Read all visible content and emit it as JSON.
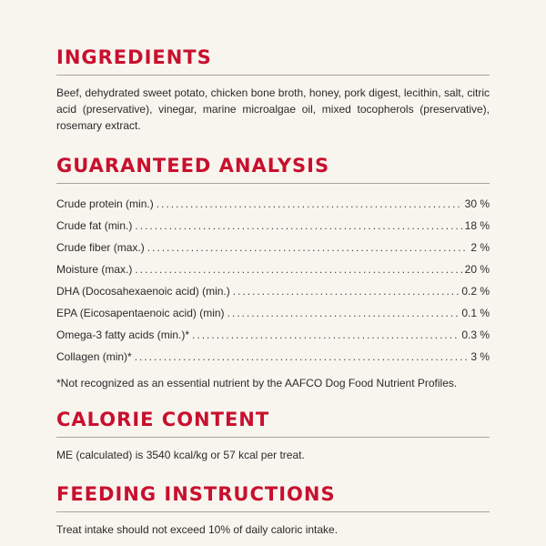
{
  "ingredients": {
    "heading": "INGREDIENTS",
    "text": "Beef, dehydrated sweet potato, chicken bone broth, honey, pork digest, lecithin, salt, citric acid (preservative), vinegar, marine microalgae oil, mixed tocopherols (preservative), rosemary extract."
  },
  "analysis": {
    "heading": "GUARANTEED ANALYSIS",
    "rows": [
      {
        "name": "Crude protein (min.)",
        "value": "30 %"
      },
      {
        "name": "Crude fat (min.)",
        "value": "18 %"
      },
      {
        "name": "Crude fiber (max.)",
        "value": "2 %"
      },
      {
        "name": "Moisture (max.)",
        "value": "20 %"
      },
      {
        "name": "DHA (Docosahexaenoic acid) (min.)",
        "value": "0.2 %"
      },
      {
        "name": "EPA (Eicosapentaenoic acid) (min)",
        "value": "0.1 %"
      },
      {
        "name": "Omega-3 fatty acids (min.)*",
        "value": "0.3 %"
      },
      {
        "name": "Collagen (min)*",
        "value": "3 %"
      }
    ],
    "footnote": "*Not recognized as an essential nutrient by the AAFCO Dog Food Nutrient Profiles."
  },
  "calorie": {
    "heading": "CALORIE CONTENT",
    "text": "ME (calculated) is 3540 kcal/kg or 57 kcal per treat."
  },
  "feeding": {
    "heading": "FEEDING INSTRUCTIONS",
    "text": "Treat intake should not exceed 10% of daily caloric intake."
  },
  "colors": {
    "heading": "#c8102e",
    "background": "#f8f5ef",
    "text": "#2a2a2a",
    "rule": "#a8a39a"
  }
}
